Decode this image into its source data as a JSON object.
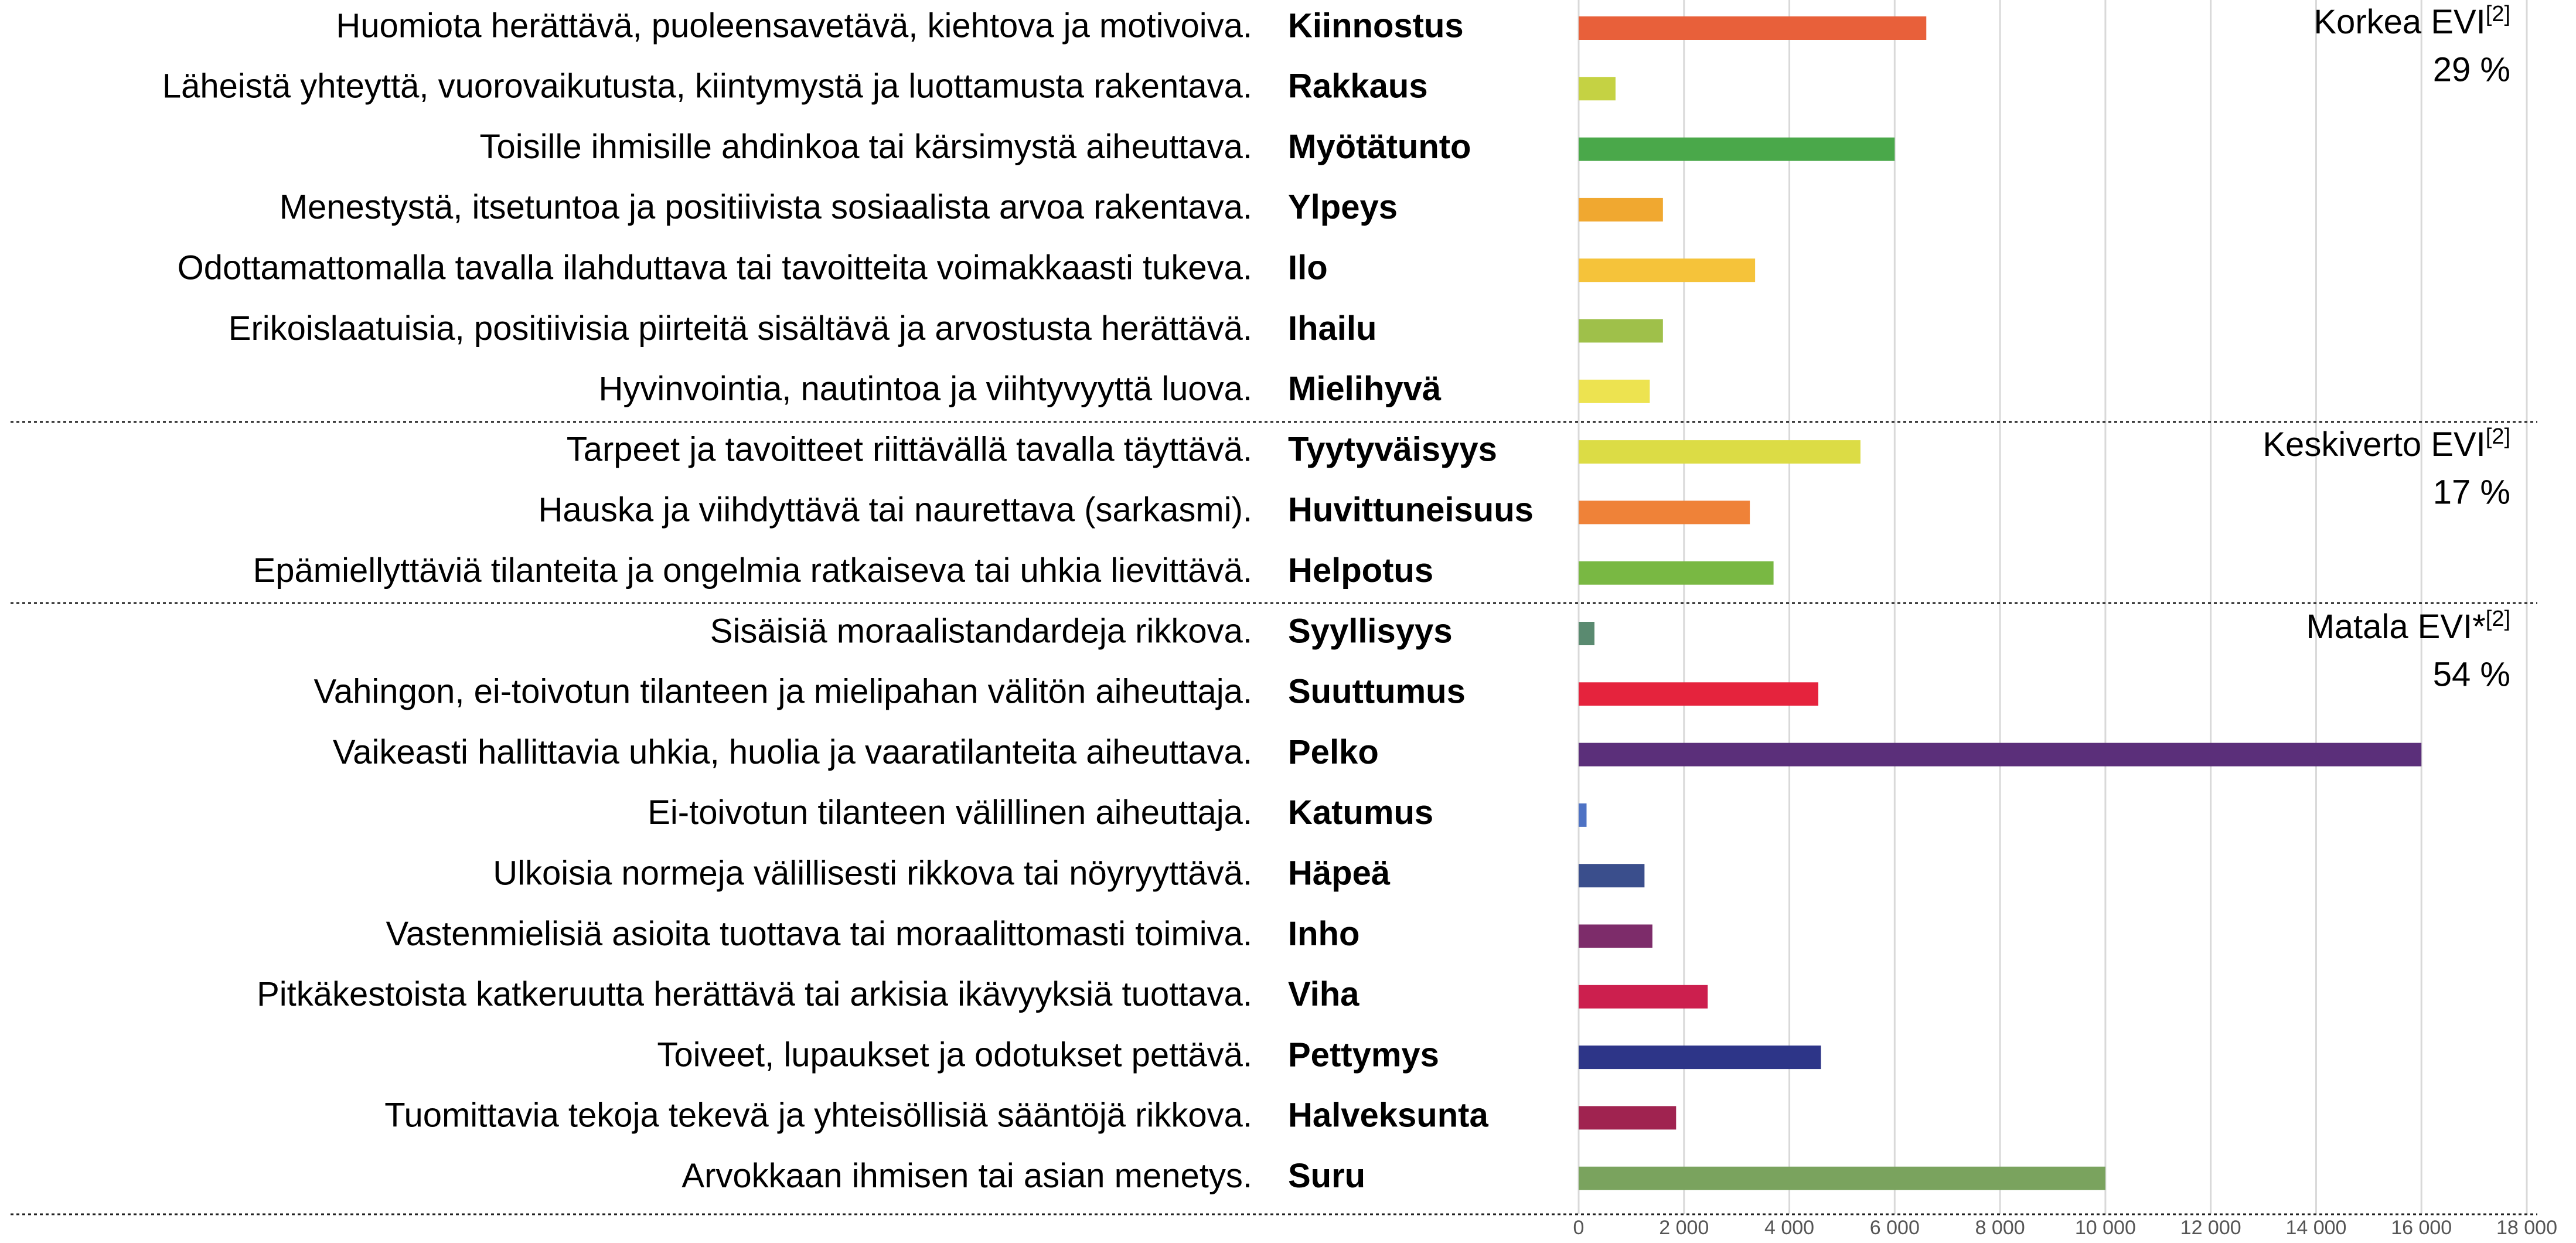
{
  "chart_data": {
    "type": "bar",
    "orientation": "horizontal",
    "descriptions": [
      "Huomiota herättävä, puoleensavetävä, kiehtova ja motivoiva.",
      "Läheistä yhteyttä, vuorovaikutusta, kiintymystä ja luottamusta rakentava.",
      "Toisille ihmisille ahdinkoa tai kärsimystä aiheuttava.",
      "Menestystä, itsetuntoa ja positiivista sosiaalista arvoa rakentava.",
      "Odottamattomalla tavalla ilahduttava tai tavoitteita voimakkaasti tukeva.",
      "Erikoislaatuisia, positiivisia piirteitä sisältävä ja arvostusta herättävä.",
      "Hyvinvointia, nautintoa ja viihtyvyyttä luova.",
      "Tarpeet ja tavoitteet riittävällä tavalla täyttävä.",
      "Hauska ja viihdyttävä tai naurettava (sarkasmi).",
      "Epämiellyttäviä tilanteita ja ongelmia ratkaiseva tai uhkia lievittävä.",
      "Sisäisiä moraalistandardeja rikkova.",
      "Vahingon, ei-toivotun tilanteen ja mielipahan välitön aiheuttaja.",
      "Vaikeasti hallittavia uhkia, huolia ja vaaratilanteita aiheuttava.",
      "Ei-toivotun tilanteen välillinen aiheuttaja.",
      "Ulkoisia normeja välillisesti rikkova tai nöyryyttävä.",
      "Vastenmielisiä asioita tuottava tai moraalittomasti toimiva.",
      "Pitkäkestoista katkeruutta herättävä tai arkisia ikävyyksiä tuottava.",
      "Toiveet, lupaukset ja odotukset pettävä.",
      "Tuomittavia tekoja tekevä ja yhteisöllisiä sääntöjä rikkova.",
      "Arvokkaan ihmisen tai asian menetys."
    ],
    "categories": [
      "Kiinnostus",
      "Rakkaus",
      "Myötätunto",
      "Ylpeys",
      "Ilo",
      "Ihailu",
      "Mielihyvä",
      "Tyytyväisyys",
      "Huvittuneisuus",
      "Helpotus",
      "Syyllisyys",
      "Suuttumus",
      "Pelko",
      "Katumus",
      "Häpeä",
      "Inho",
      "Viha",
      "Pettymys",
      "Halveksunta",
      "Suru"
    ],
    "values": [
      6600,
      700,
      6000,
      1600,
      3350,
      1600,
      1350,
      5350,
      3250,
      3700,
      300,
      4550,
      16000,
      150,
      1250,
      1400,
      2450,
      4600,
      1850,
      10000
    ],
    "colors": [
      "#e8603a",
      "#c5d243",
      "#4aa84a",
      "#f0a830",
      "#f5c33a",
      "#9fc04a",
      "#ede350",
      "#dcdc45",
      "#ef8238",
      "#79b843",
      "#5a8a70",
      "#e5233d",
      "#5b2f7a",
      "#4e72c4",
      "#3a4e8c",
      "#7d2c6a",
      "#cc1f4e",
      "#2d3588",
      "#a02350",
      "#7aa35e"
    ],
    "xlim": [
      0,
      18000
    ],
    "xticks": [
      0,
      {
        "value": 2000,
        "label": "2 000"
      },
      {
        "value": 4000,
        "label": "4 000"
      },
      {
        "value": 6000,
        "label": "6 000"
      },
      {
        "value": 8000,
        "label": "8 000"
      },
      {
        "value": 10000,
        "label": "10 000"
      },
      {
        "value": 12000,
        "label": "12 000"
      },
      {
        "value": 14000,
        "label": "14 000"
      },
      {
        "value": 16000,
        "label": "16 000"
      },
      {
        "value": 18000,
        "label": "18 000"
      }
    ],
    "grid": true,
    "groups": [
      {
        "label": "Korkea EVI",
        "note": "[2]",
        "share": "29 %"
      },
      {
        "label": "Keskiverto EVI",
        "note": "[2]",
        "share": "17 %"
      },
      {
        "label": "Matala EVI*",
        "note": "[2]",
        "share": "54 %"
      }
    ]
  }
}
